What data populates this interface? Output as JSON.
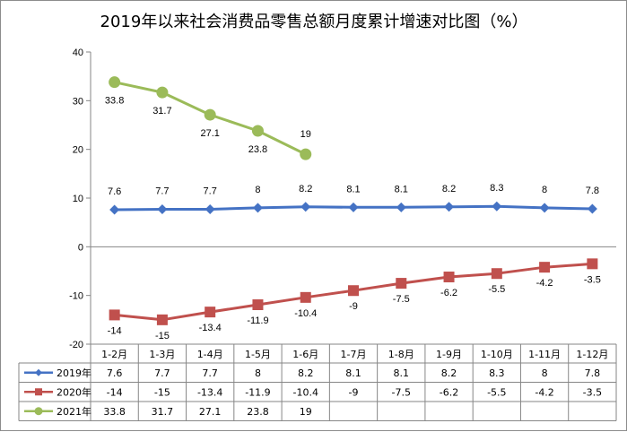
{
  "chart_data": {
    "type": "line",
    "title": "2019年以来社会消费品零售总额月度累计增速对比图（%）",
    "categories": [
      "1-2月",
      "1-3月",
      "1-4月",
      "1-5月",
      "1-6月",
      "1-7月",
      "1-8月",
      "1-9月",
      "1-10月",
      "1-11月",
      "1-12月"
    ],
    "ylim": [
      -20,
      40
    ],
    "yticks": [
      40,
      30,
      20,
      10,
      0,
      -10,
      -20
    ],
    "grid": false,
    "legend": "data-table",
    "series": [
      {
        "name": "2019年",
        "color": "#4472C4",
        "marker": "diamond",
        "values": [
          7.6,
          7.7,
          7.7,
          8,
          8.2,
          8.1,
          8.1,
          8.2,
          8.3,
          8,
          7.8
        ]
      },
      {
        "name": "2020年",
        "color": "#C0504D",
        "marker": "square",
        "values": [
          -14,
          -15,
          -13.4,
          -11.9,
          -10.4,
          -9,
          -7.5,
          -6.2,
          -5.5,
          -4.2,
          -3.5
        ]
      },
      {
        "name": "2021年",
        "color": "#9BBB59",
        "marker": "circle",
        "values": [
          33.8,
          31.7,
          27.1,
          23.8,
          19,
          null,
          null,
          null,
          null,
          null,
          null
        ]
      }
    ]
  }
}
